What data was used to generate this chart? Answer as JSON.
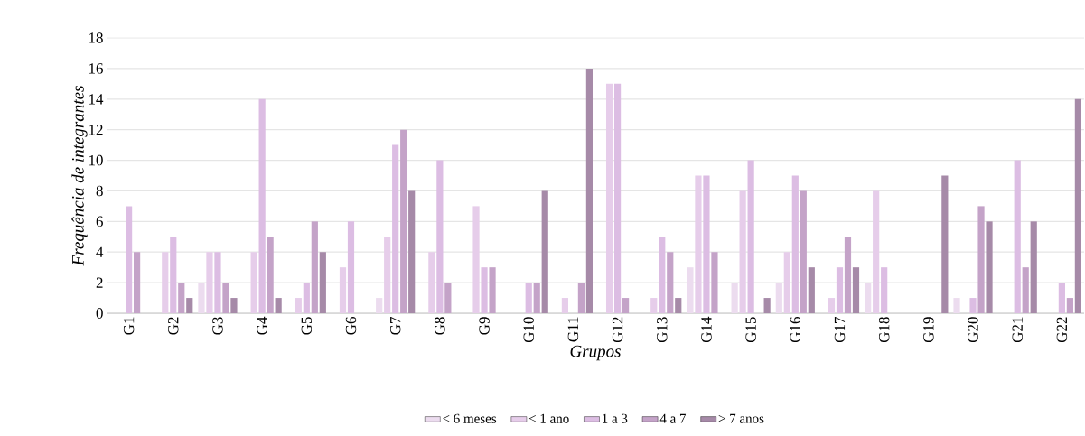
{
  "chart_data": {
    "type": "bar",
    "xlabel": "Grupos",
    "ylabel": "Frequência de integrantes",
    "categories": [
      "G1",
      "G2",
      "G3",
      "G4",
      "G5",
      "G6",
      "G7",
      "G8",
      "G9",
      "G10",
      "G11",
      "G12",
      "G13",
      "G14",
      "G15",
      "G16",
      "G17",
      "G18",
      "G19",
      "G20",
      "G21",
      "G22"
    ],
    "series": [
      {
        "name": "< 6 meses",
        "color": "#ecdcef",
        "values": [
          0,
          0,
          2,
          0,
          0,
          0,
          1,
          0,
          0,
          0,
          0,
          0,
          0,
          3,
          2,
          2,
          0,
          2,
          0,
          1,
          0,
          0
        ]
      },
      {
        "name": "< 1 ano",
        "color": "#e6cdea",
        "values": [
          0,
          4,
          4,
          4,
          1,
          3,
          5,
          4,
          7,
          0,
          1,
          15,
          1,
          9,
          8,
          4,
          1,
          8,
          0,
          0,
          0,
          0
        ]
      },
      {
        "name": "1 a 3",
        "color": "#dcbde3",
        "values": [
          7,
          5,
          4,
          14,
          2,
          6,
          11,
          10,
          3,
          2,
          0,
          15,
          5,
          9,
          10,
          9,
          3,
          3,
          0,
          1,
          10,
          2
        ]
      },
      {
        "name": "4 a 7",
        "color": "#c4a3c8",
        "values": [
          4,
          2,
          2,
          5,
          6,
          0,
          12,
          2,
          3,
          2,
          2,
          1,
          4,
          4,
          0,
          8,
          5,
          0,
          0,
          7,
          3,
          1
        ]
      },
      {
        "name": "> 7 anos",
        "color": "#a68aa8",
        "values": [
          0,
          1,
          1,
          1,
          4,
          0,
          8,
          0,
          0,
          8,
          16,
          0,
          1,
          0,
          1,
          3,
          3,
          0,
          9,
          6,
          6,
          14
        ]
      }
    ],
    "ylim": [
      0,
      18
    ],
    "yticks": [
      0,
      2,
      4,
      6,
      8,
      10,
      12,
      14,
      16,
      18
    ],
    "grid": "y",
    "legend": "bottom"
  }
}
